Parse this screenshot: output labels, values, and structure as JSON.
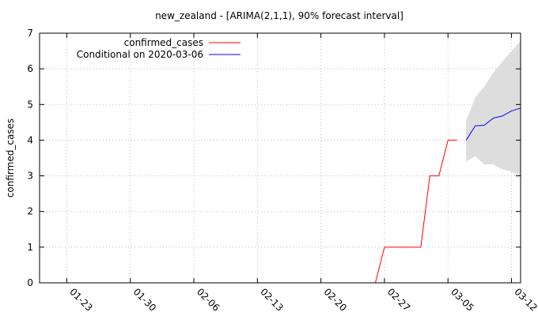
{
  "chart_data": {
    "type": "line",
    "title": "new_zealand -  [ARIMA(2,1,1), 90% forecast interval]",
    "xlabel": "",
    "ylabel": "confirmed_cases",
    "x_axis_type": "date",
    "xlim": [
      "2020-01-20",
      "2020-03-13"
    ],
    "ylim": [
      0,
      7
    ],
    "x_ticks": [
      {
        "date": "2020-01-23",
        "label": "01-23"
      },
      {
        "date": "2020-01-30",
        "label": "01-30"
      },
      {
        "date": "2020-02-06",
        "label": "02-06"
      },
      {
        "date": "2020-02-13",
        "label": "02-13"
      },
      {
        "date": "2020-02-20",
        "label": "02-20"
      },
      {
        "date": "2020-02-27",
        "label": "02-27"
      },
      {
        "date": "2020-03-05",
        "label": "03-05"
      },
      {
        "date": "2020-03-12",
        "label": "03-12"
      }
    ],
    "y_ticks": [
      0,
      1,
      2,
      3,
      4,
      5,
      6,
      7
    ],
    "grid": true,
    "legend_position": "top-left",
    "series": [
      {
        "name": "confirmed_cases",
        "color": "#ff0000",
        "x": [
          "2020-02-26",
          "2020-02-27",
          "2020-02-28",
          "2020-02-29",
          "2020-03-01",
          "2020-03-02",
          "2020-03-03",
          "2020-03-04",
          "2020-03-05",
          "2020-03-06"
        ],
        "y": [
          0,
          1,
          1,
          1,
          1,
          1,
          3,
          3,
          4,
          4
        ]
      },
      {
        "name": "Conditional on 2020-03-06",
        "color": "#0000ff",
        "x": [
          "2020-03-07",
          "2020-03-08",
          "2020-03-09",
          "2020-03-10",
          "2020-03-11",
          "2020-03-12",
          "2020-03-13"
        ],
        "y": [
          4.0,
          4.4,
          4.42,
          4.62,
          4.68,
          4.82,
          4.9
        ]
      }
    ],
    "forecast_interval": {
      "label": "90% forecast interval",
      "color": "#dddddd",
      "x": [
        "2020-03-07",
        "2020-03-08",
        "2020-03-09",
        "2020-03-10",
        "2020-03-11",
        "2020-03-12",
        "2020-03-13"
      ],
      "lower": [
        3.4,
        3.55,
        3.32,
        3.32,
        3.18,
        3.12,
        3.0
      ],
      "upper": [
        4.55,
        5.2,
        5.5,
        5.9,
        6.2,
        6.5,
        6.78
      ]
    }
  }
}
